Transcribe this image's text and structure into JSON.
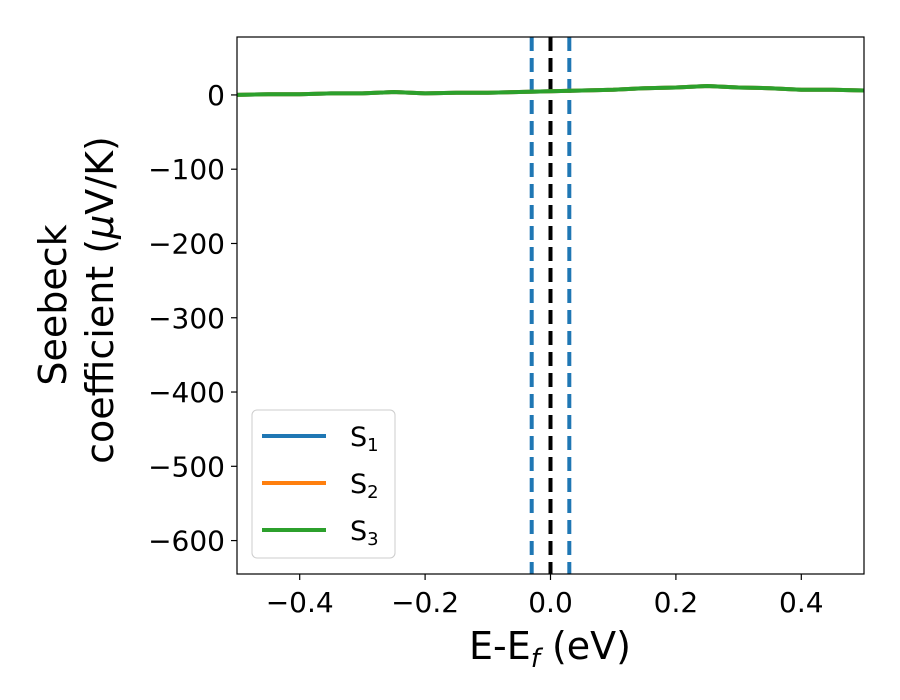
{
  "chart_data": {
    "type": "line",
    "xlabel": {
      "main": "E-E",
      "sub": "f",
      "unit": " (eV)"
    },
    "ylabel": {
      "line1": "Seebeck",
      "line2_prefix": "coefficient  (",
      "mu": "μ",
      "line2_suffix": "V/K)"
    },
    "xlim": [
      -0.5,
      0.5
    ],
    "ylim": [
      -645,
      78
    ],
    "xticks": [
      -0.4,
      -0.2,
      0.0,
      0.2,
      0.4
    ],
    "xtick_labels": [
      "−0.4",
      "−0.2",
      "0.0",
      "0.2",
      "0.4"
    ],
    "yticks": [
      0,
      -100,
      -200,
      -300,
      -400,
      -500,
      -600
    ],
    "ytick_labels": [
      "0",
      "−100",
      "−200",
      "−300",
      "−400",
      "−500",
      "−600"
    ],
    "vlines": [
      {
        "x": -0.03,
        "style": "dashed",
        "color": "#1f77b4"
      },
      {
        "x": 0.03,
        "style": "dashed",
        "color": "#1f77b4"
      },
      {
        "x": 0.0,
        "style": "dashed",
        "color": "#000000"
      }
    ],
    "series": [
      {
        "name": "S",
        "sub": "1",
        "color": "#1f77b4",
        "x": [
          -0.5,
          -0.45,
          -0.4,
          -0.35,
          -0.3,
          -0.25,
          -0.2,
          -0.15,
          -0.1,
          -0.05,
          0.0,
          0.05,
          0.1,
          0.15,
          0.2,
          0.25,
          0.3,
          0.35,
          0.4,
          0.45,
          0.5
        ],
        "y": [
          0,
          1,
          1,
          2,
          2,
          4,
          2,
          3,
          3,
          4,
          5,
          6,
          7,
          9,
          10,
          12,
          10,
          9,
          7,
          7,
          6
        ]
      },
      {
        "name": "S",
        "sub": "2",
        "color": "#ff7f0e",
        "x": [
          -0.5,
          -0.45,
          -0.4,
          -0.35,
          -0.3,
          -0.25,
          -0.2,
          -0.15,
          -0.1,
          -0.05,
          0.0,
          0.05,
          0.1,
          0.15,
          0.2,
          0.25,
          0.3,
          0.35,
          0.4,
          0.45,
          0.5
        ],
        "y": [
          0,
          1,
          1,
          2,
          2,
          4,
          2,
          3,
          3,
          4,
          5,
          6,
          7,
          9,
          10,
          12,
          10,
          9,
          7,
          7,
          6
        ]
      },
      {
        "name": "S",
        "sub": "3",
        "color": "#2ca02c",
        "x": [
          -0.5,
          -0.45,
          -0.4,
          -0.35,
          -0.3,
          -0.25,
          -0.2,
          -0.15,
          -0.1,
          -0.05,
          0.0,
          0.05,
          0.1,
          0.15,
          0.2,
          0.25,
          0.3,
          0.35,
          0.4,
          0.45,
          0.5
        ],
        "y": [
          0,
          1,
          1,
          2,
          2,
          4,
          2,
          3,
          3,
          4,
          5,
          6,
          7,
          9,
          10,
          12,
          10,
          9,
          7,
          7,
          6
        ]
      }
    ],
    "legend": {
      "position": "lower-left"
    },
    "grid": false
  }
}
